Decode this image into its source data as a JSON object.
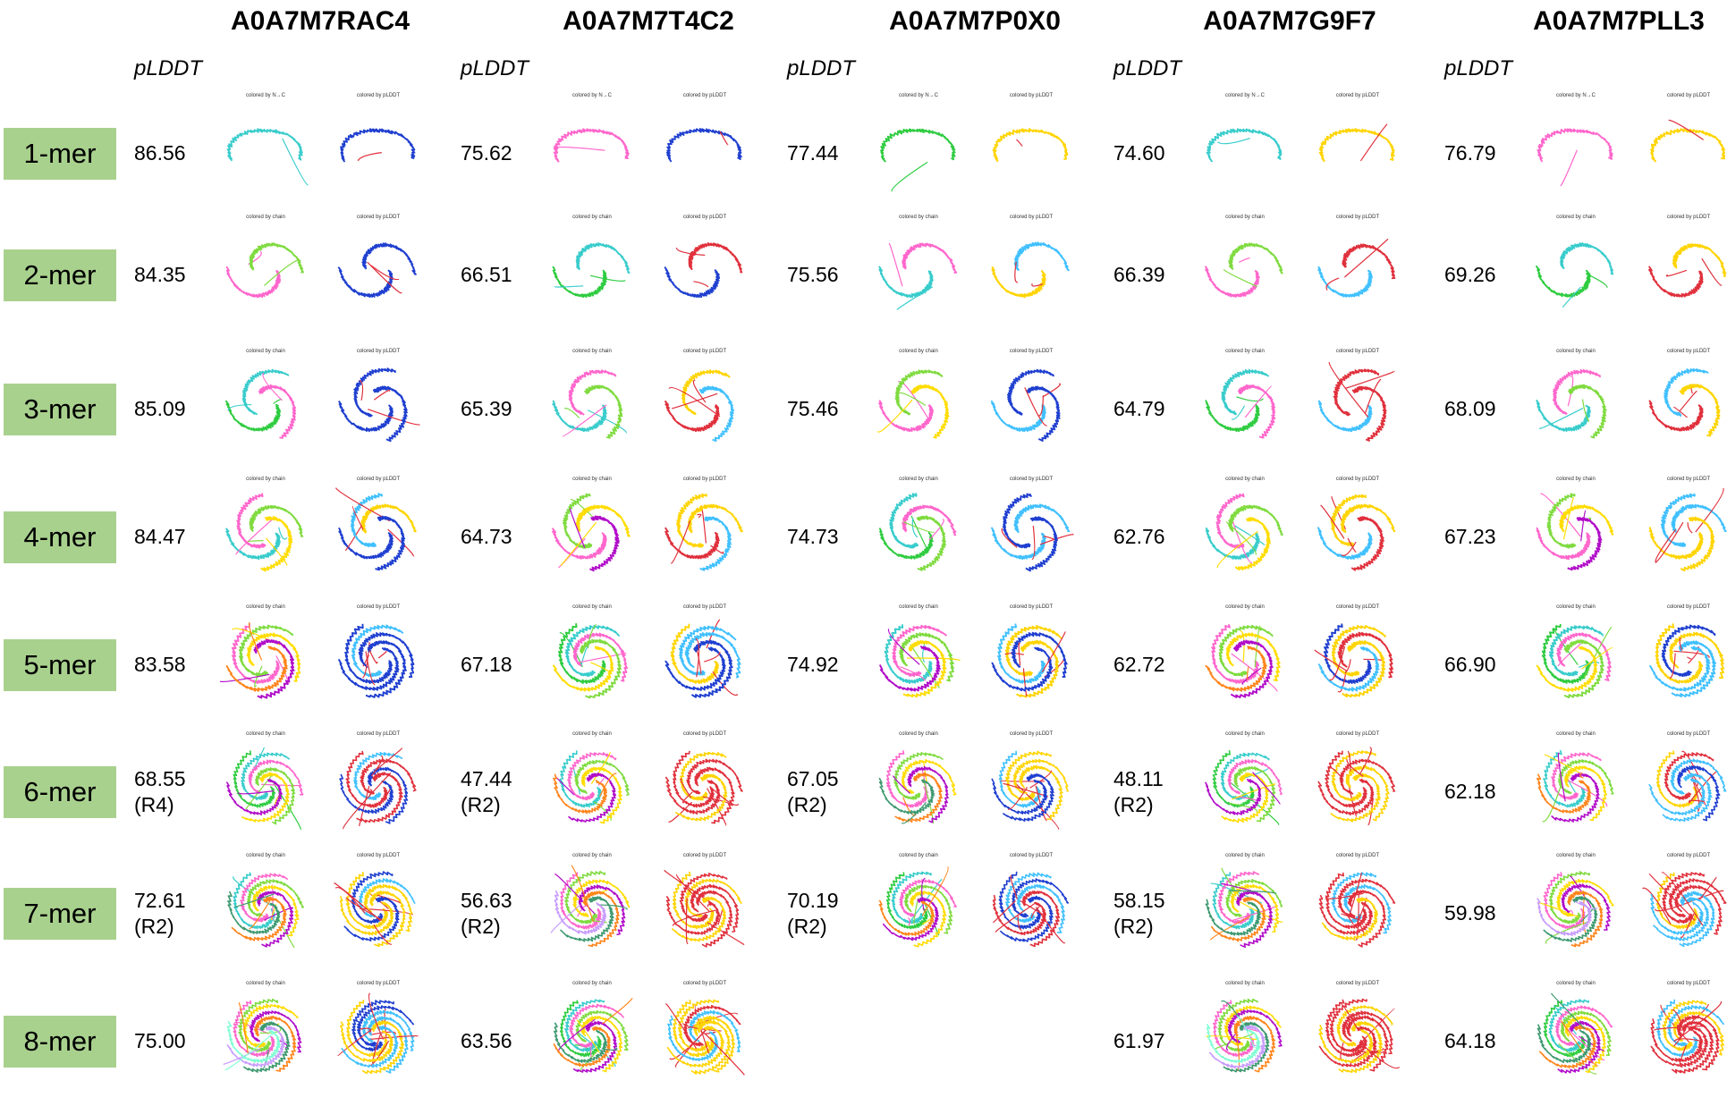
{
  "columns": [
    "A0A7M7RAC4",
    "A0A7M7T4C2",
    "A0A7M7P0X0",
    "A0A7M7G9F7",
    "A0A7M7PLL3"
  ],
  "plddt_header": "pLDDT",
  "rows": [
    {
      "label": "1-mer",
      "values": [
        "86.56",
        "75.62",
        "77.44",
        "74.60",
        "76.79"
      ],
      "notes": [
        "",
        "",
        "",
        "",
        ""
      ],
      "cap1": "colored by N→C",
      "cap2": "colored by pLDDT"
    },
    {
      "label": "2-mer",
      "values": [
        "84.35",
        "66.51",
        "75.56",
        "66.39",
        "69.26"
      ],
      "notes": [
        "",
        "",
        "",
        "",
        ""
      ],
      "cap1": "colored by chain",
      "cap2": "colored by pLDDT"
    },
    {
      "label": "3-mer",
      "values": [
        "85.09",
        "65.39",
        "75.46",
        "64.79",
        "68.09"
      ],
      "notes": [
        "",
        "",
        "",
        "",
        ""
      ],
      "cap1": "colored by chain",
      "cap2": "colored by pLDDT"
    },
    {
      "label": "4-mer",
      "values": [
        "84.47",
        "64.73",
        "74.73",
        "62.76",
        "67.23"
      ],
      "notes": [
        "",
        "",
        "",
        "",
        ""
      ],
      "cap1": "colored by chain",
      "cap2": "colored by pLDDT"
    },
    {
      "label": "5-mer",
      "values": [
        "83.58",
        "67.18",
        "74.92",
        "62.72",
        "66.90"
      ],
      "notes": [
        "",
        "",
        "",
        "",
        ""
      ],
      "cap1": "colored by chain",
      "cap2": "colored by pLDDT"
    },
    {
      "label": "6-mer",
      "values": [
        "68.55",
        "47.44",
        "67.05",
        "48.11",
        "62.18"
      ],
      "notes": [
        "(R4)",
        "(R2)",
        "(R2)",
        "(R2)",
        ""
      ],
      "cap1": "colored by chain",
      "cap2": "colored by pLDDT"
    },
    {
      "label": "7-mer",
      "values": [
        "72.61",
        "56.63",
        "70.19",
        "58.15",
        "59.98"
      ],
      "notes": [
        "(R2)",
        "(R2)",
        "(R2)",
        "(R2)",
        ""
      ],
      "cap1": "colored by chain",
      "cap2": "colored by pLDDT"
    },
    {
      "label": "8-mer",
      "values": [
        "75.00",
        "63.56",
        "",
        "61.97",
        "64.18"
      ],
      "notes": [
        "",
        "",
        "",
        "",
        ""
      ],
      "cap1": "colored by chain",
      "cap2": "colored by pLDDT"
    }
  ],
  "palette": {
    "chain": [
      "#2ecc40",
      "#39cccc",
      "#ff66cc",
      "#7fdb3f",
      "#ffdc00",
      "#b10dc9",
      "#ff851b",
      "#3d9970",
      "#c89bff",
      "#7fffd4"
    ],
    "plddt_high": "#1f3fd0",
    "plddt_mid": "#40c0ff",
    "plddt_low": "#ffd400",
    "plddt_vlow": "#e0303c",
    "label_bg": "#a9d18e"
  }
}
